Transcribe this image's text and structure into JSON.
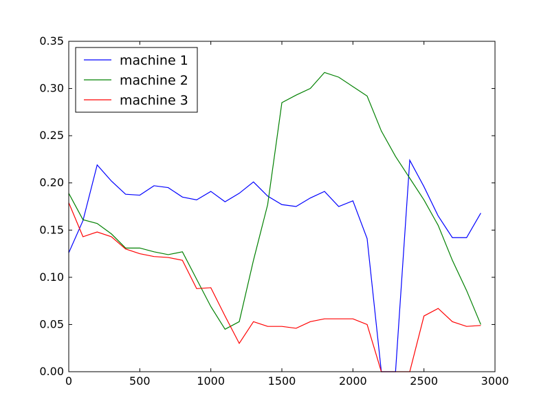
{
  "chart_data": {
    "type": "line",
    "title": "",
    "xlabel": "",
    "ylabel": "",
    "xlim": [
      0,
      3000
    ],
    "ylim": [
      0,
      0.35
    ],
    "xticks": [
      "0",
      "500",
      "1000",
      "1500",
      "2000",
      "2500",
      "3000"
    ],
    "yticks": [
      "0.00",
      "0.05",
      "0.10",
      "0.15",
      "0.20",
      "0.25",
      "0.30",
      "0.35"
    ],
    "grid": false,
    "legend_position": "top-left",
    "x": [
      0,
      100,
      200,
      300,
      400,
      500,
      600,
      700,
      800,
      900,
      1000,
      1100,
      1200,
      1300,
      1400,
      1500,
      1600,
      1700,
      1800,
      1900,
      2000,
      2100,
      2200,
      2300,
      2400,
      2500,
      2600,
      2700,
      2800,
      2900
    ],
    "series": [
      {
        "name": "machine 1",
        "color": "#0000ff",
        "values": [
          0.126,
          0.16,
          0.219,
          0.202,
          0.188,
          0.187,
          0.197,
          0.195,
          0.185,
          0.182,
          0.191,
          0.18,
          0.189,
          0.201,
          0.186,
          0.177,
          0.175,
          0.184,
          0.191,
          0.175,
          0.181,
          0.141,
          0.0,
          0.0,
          0.224,
          0.196,
          0.165,
          0.142,
          0.142,
          0.168
        ]
      },
      {
        "name": "machine 2",
        "color": "#008000",
        "values": [
          0.189,
          0.161,
          0.157,
          0.146,
          0.131,
          0.131,
          0.127,
          0.124,
          0.127,
          0.098,
          0.069,
          0.045,
          0.053,
          0.118,
          0.177,
          0.285,
          0.293,
          0.3,
          0.317,
          0.312,
          0.302,
          0.292,
          0.255,
          0.228,
          0.205,
          0.182,
          0.155,
          0.118,
          0.086,
          0.05
        ]
      },
      {
        "name": "machine 3",
        "color": "#ff0000",
        "values": [
          0.179,
          0.143,
          0.148,
          0.143,
          0.13,
          0.125,
          0.122,
          0.121,
          0.118,
          0.088,
          0.089,
          0.059,
          0.03,
          0.053,
          0.048,
          0.048,
          0.046,
          0.053,
          0.056,
          0.056,
          0.056,
          0.05,
          0.0,
          0.0,
          0.0,
          0.059,
          0.067,
          0.053,
          0.048,
          0.049
        ]
      }
    ]
  }
}
